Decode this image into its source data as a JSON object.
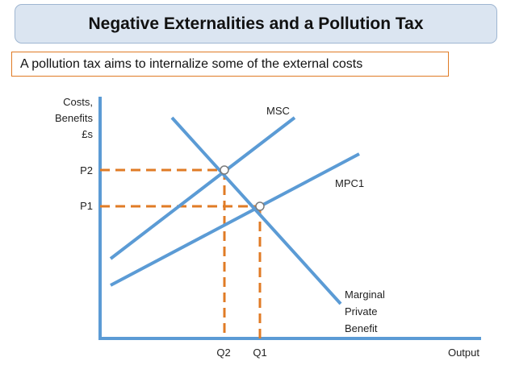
{
  "title": "Negative Externalities and a Pollution Tax",
  "subtitle": "A pollution tax aims to internalize some of the external costs",
  "diagram": {
    "y_axis_label_lines": [
      "Costs,",
      "Benefits",
      "£s"
    ],
    "x_axis_label": "Output",
    "price_labels": {
      "p2": "P2",
      "p1": "P1"
    },
    "quantity_labels": {
      "q2": "Q2",
      "q1": "Q1"
    },
    "curves": {
      "msc": "MSC",
      "mpc": "MPC1",
      "mpb_lines": [
        "Marginal",
        "Private",
        "Benefit"
      ]
    },
    "colors": {
      "curve": "#5b9bd5",
      "guide": "#e07b25",
      "axis": "#5b9bd5"
    }
  }
}
